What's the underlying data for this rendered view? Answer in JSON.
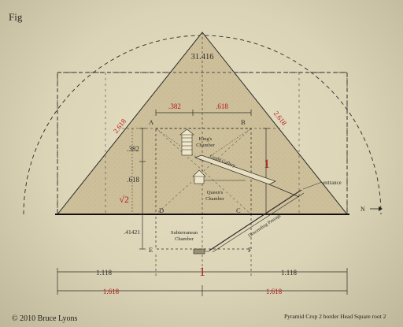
{
  "fig_label": "Fig",
  "apex_value": "31.416",
  "labels": {
    "top_left": ".382",
    "top_right": ".618",
    "slope_left": "2.618",
    "slope_right": "2.618",
    "side_382": ".382",
    "side_618": ".618",
    "sqrt2": "√2",
    "side_41421": ".41421",
    "center_one": "1",
    "width_one": "1",
    "bottom_left": "1.118",
    "bottom_right": "1.118",
    "phi_left": "1.618",
    "phi_right": "1.618"
  },
  "points": {
    "a": "A",
    "b": "B",
    "c": "C",
    "d": "D",
    "e": "E",
    "f": "F"
  },
  "rooms": {
    "kings_1": "King's",
    "kings_2": "Chamber",
    "queens_1": "Queen's",
    "queens_2": "Chamber",
    "subterr_1": "Subterranean",
    "subterr_2": "Chamber",
    "grand_gallery": "Grand Gallery",
    "descending": "Descending Passage",
    "entrance": "entrance"
  },
  "north": "N",
  "copyright": "© 2010 Bruce Lyons",
  "caption": "Pyramid  Crop 2 border Head Square root 2",
  "colors": {
    "ink": "#2b2b2b",
    "accent": "#b3181c",
    "stone": "#cfc3a0"
  }
}
